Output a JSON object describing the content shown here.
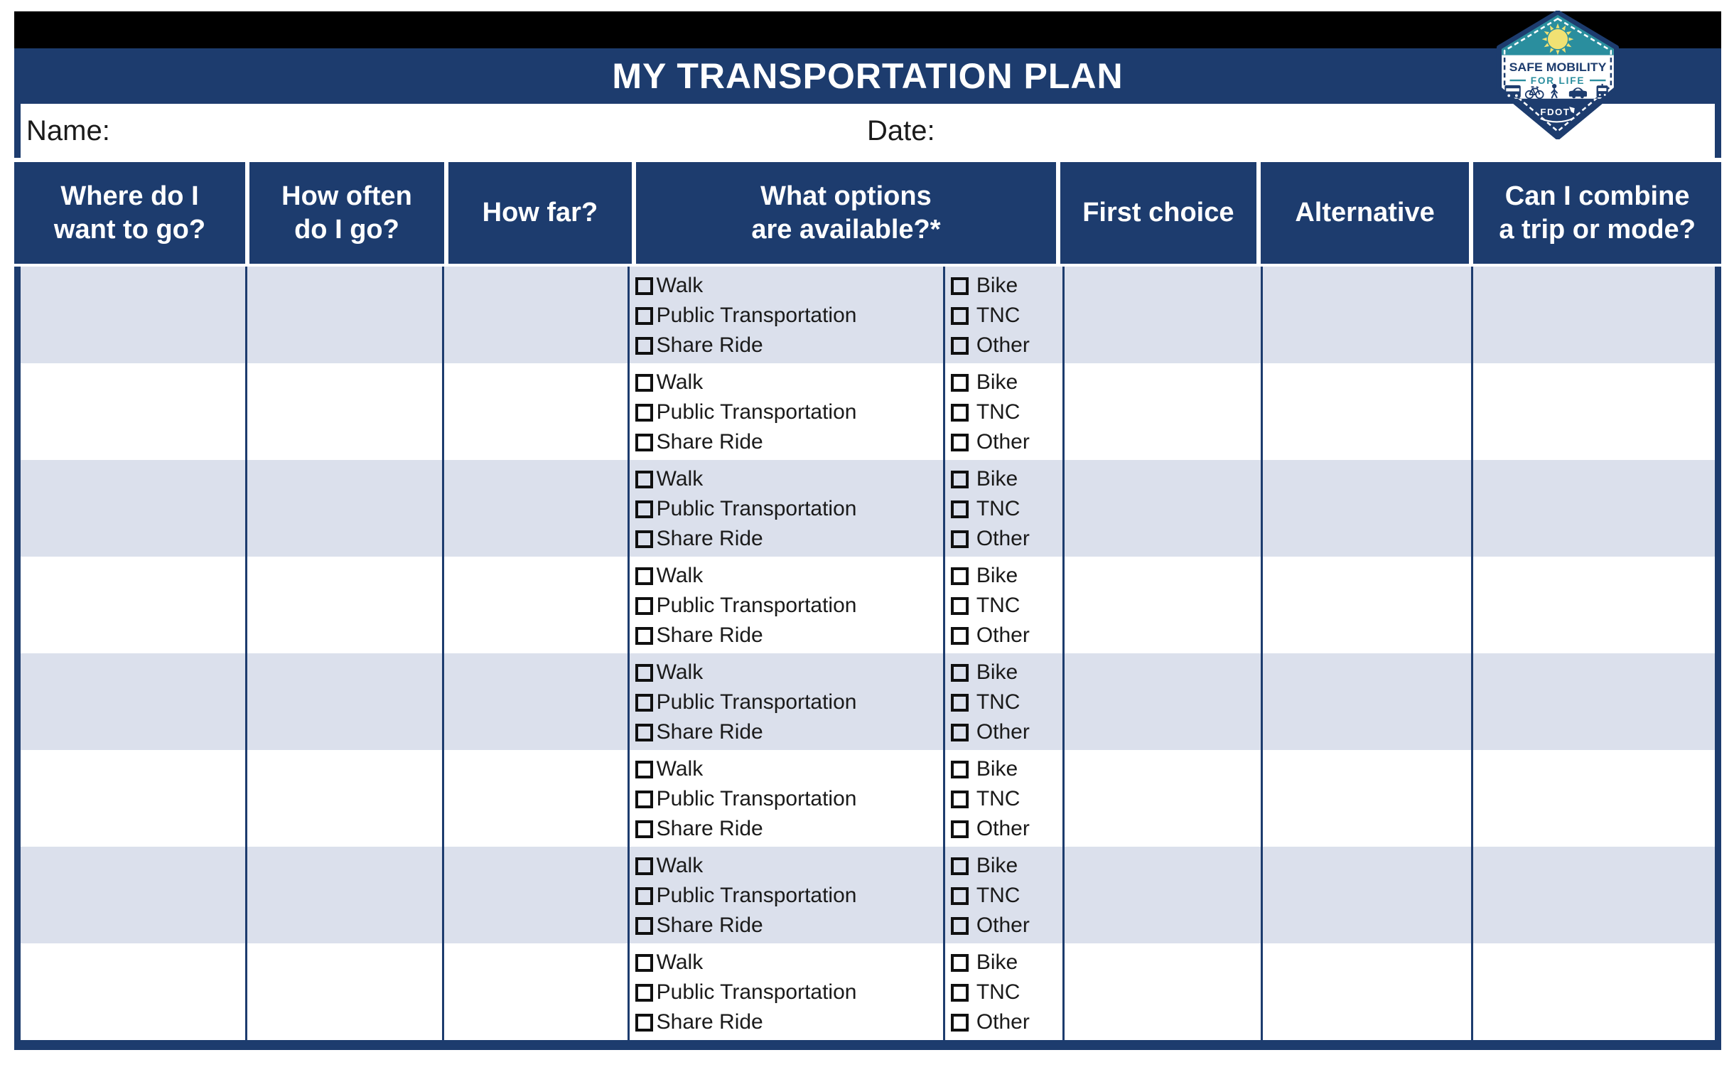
{
  "title": "MY TRANSPORTATION PLAN",
  "fields": {
    "name_label": "Name:",
    "name_value": "",
    "date_label": "Date:",
    "date_value": ""
  },
  "table": {
    "columns": [
      "Where do I\nwant to go?",
      "How often\ndo I go?",
      "How far?",
      "What options\nare available?*",
      "First choice",
      "Alternative",
      "Can I combine\na trip or mode?"
    ],
    "row_count": 8,
    "options_left": [
      "Walk",
      "Public Transportation",
      "Share Ride"
    ],
    "options_right": [
      "Bike",
      "TNC",
      "Other"
    ],
    "checkbox_state": "unchecked"
  },
  "badge": {
    "title_line1": "SAFE MOBILITY",
    "title_line2": "FOR LIFE",
    "agency": "FDOT",
    "icons": [
      "bus-icon",
      "bicycle-icon",
      "pedestrian-icon",
      "car-icon",
      "trolley-icon"
    ]
  },
  "colors": {
    "navy": "#1d3c6e",
    "row_alt": "#dbe0ec",
    "black_bar": "#000000",
    "teal": "#2a8e9e",
    "sun_yellow": "#f1e173",
    "header_text": "#ffffff",
    "body_text": "#1a1a1a"
  }
}
